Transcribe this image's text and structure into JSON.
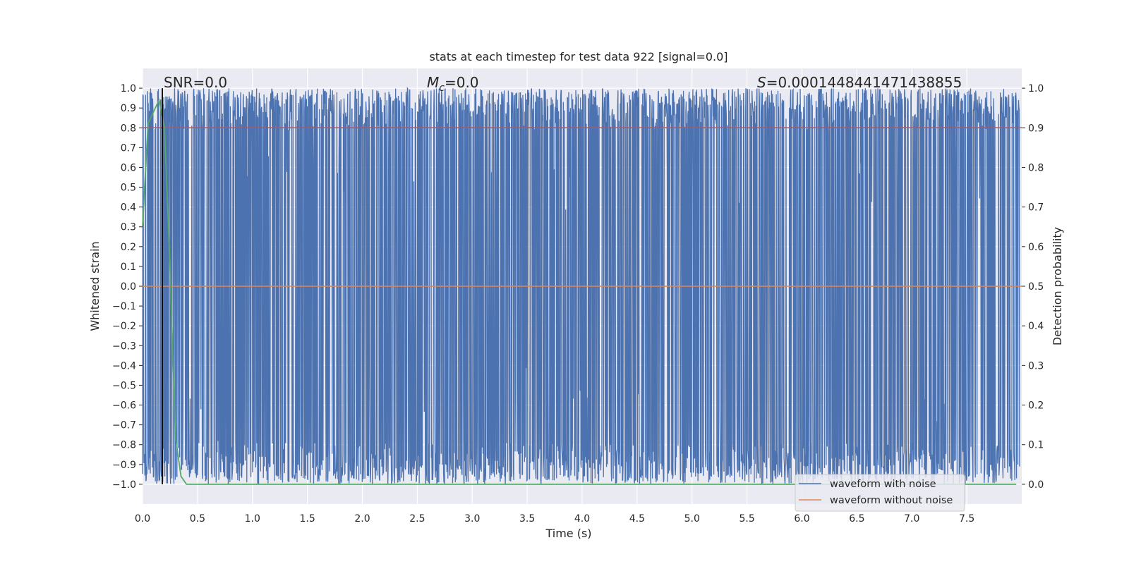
{
  "chart_data": {
    "type": "line",
    "title": "stats at each timestep for test data 922 [signal=0.0]",
    "xlabel": "Time (s)",
    "ylabel_left": "Whitened strain",
    "ylabel_right": "Detection probability",
    "xlim": [
      0.0,
      8.0
    ],
    "ylim_left": [
      -1.1,
      1.1
    ],
    "ylim_right": [
      -0.05,
      1.05
    ],
    "x_ticks": [
      "0.0",
      "0.5",
      "1.0",
      "1.5",
      "2.0",
      "2.5",
      "3.0",
      "3.5",
      "4.0",
      "4.5",
      "5.0",
      "5.5",
      "6.0",
      "6.5",
      "7.0",
      "7.5"
    ],
    "y_ticks_left": [
      "1.0",
      "0.9",
      "0.8",
      "0.7",
      "0.6",
      "0.5",
      "0.4",
      "0.3",
      "0.2",
      "0.1",
      "0.0",
      "−0.1",
      "−0.2",
      "−0.3",
      "−0.4",
      "−0.5",
      "−0.6",
      "−0.7",
      "−0.8",
      "−0.9",
      "−1.0"
    ],
    "y_ticks_right": [
      "1.0",
      "0.9",
      "0.8",
      "0.7",
      "0.6",
      "0.5",
      "0.4",
      "0.3",
      "0.2",
      "0.1",
      "0.0"
    ],
    "grid": true,
    "legend_position": "lower-right",
    "annotations": {
      "snr_label": "SNR=0.0",
      "mc_symbol": "M",
      "mc_sub": "c",
      "mc_rest": "=0.0",
      "s_symbol": "S",
      "s_rest": "=0.0001448441471438855"
    },
    "vertical_line_x": 0.18,
    "threshold_probability": 0.9,
    "series": [
      {
        "name": "waveform with noise",
        "axis": "left",
        "color": "#4c72b0",
        "description_range": [
          -1.0,
          1.0
        ]
      },
      {
        "name": "waveform without noise",
        "axis": "left",
        "color": "#dd8452",
        "constant_value": 0.0
      },
      {
        "axis": "right",
        "color": "#55a868",
        "x": [
          0.0,
          0.05,
          0.1,
          0.15,
          0.2,
          0.25,
          0.3,
          0.35,
          0.4,
          1.0,
          2.0,
          3.0,
          4.0,
          5.0,
          6.0,
          7.0,
          7.95
        ],
        "values": [
          0.65,
          0.91,
          0.94,
          0.97,
          0.9,
          0.55,
          0.12,
          0.02,
          0.0,
          0.0,
          0.0,
          0.0,
          0.0,
          0.0,
          0.0,
          0.0,
          0.0
        ]
      },
      {
        "axis": "right",
        "color": "#c44e52",
        "constant_value": 0.9
      }
    ],
    "colors": {
      "plot_bg": "#eaeaf2",
      "grid": "#ffffff",
      "vertical_line": "#000000"
    }
  }
}
